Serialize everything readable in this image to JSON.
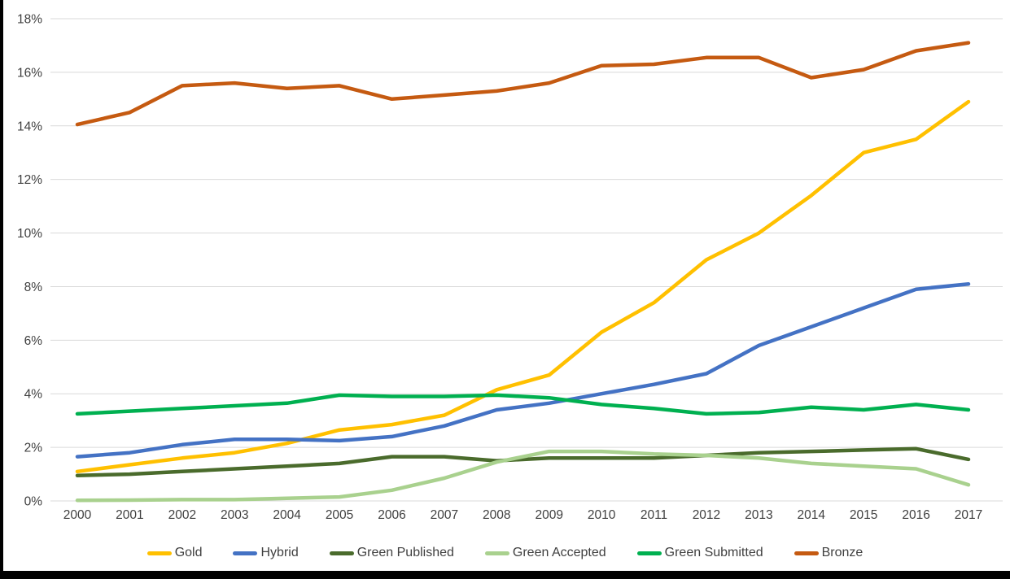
{
  "chart_data": {
    "type": "line",
    "title": "",
    "x": [
      2000,
      2001,
      2002,
      2003,
      2004,
      2005,
      2006,
      2007,
      2008,
      2009,
      2010,
      2011,
      2012,
      2013,
      2014,
      2015,
      2016,
      2017
    ],
    "series": [
      {
        "name": "Gold",
        "color": "#FFC000",
        "values": [
          1.1,
          1.35,
          1.6,
          1.8,
          2.15,
          2.65,
          2.85,
          3.2,
          4.15,
          4.7,
          6.3,
          7.4,
          9.0,
          10.0,
          11.4,
          13.0,
          13.5,
          14.9
        ]
      },
      {
        "name": "Hybrid",
        "color": "#4472C4",
        "values": [
          1.65,
          1.8,
          2.1,
          2.3,
          2.3,
          2.25,
          2.4,
          2.8,
          3.4,
          3.65,
          4.0,
          4.35,
          4.75,
          5.8,
          6.5,
          7.2,
          7.9,
          8.1
        ]
      },
      {
        "name": "Green Published",
        "color": "#4A6B2C",
        "values": [
          0.95,
          1.0,
          1.1,
          1.2,
          1.3,
          1.4,
          1.65,
          1.65,
          1.5,
          1.6,
          1.6,
          1.6,
          1.7,
          1.8,
          1.85,
          1.9,
          1.95,
          1.55
        ]
      },
      {
        "name": "Green Accepted",
        "color": "#A9D18E",
        "values": [
          0.02,
          0.03,
          0.05,
          0.05,
          0.1,
          0.15,
          0.4,
          0.85,
          1.45,
          1.85,
          1.85,
          1.75,
          1.7,
          1.6,
          1.4,
          1.3,
          1.2,
          0.6
        ]
      },
      {
        "name": "Green Submitted",
        "color": "#00B050",
        "values": [
          3.25,
          3.35,
          3.45,
          3.55,
          3.65,
          3.95,
          3.9,
          3.9,
          3.95,
          3.85,
          3.6,
          3.45,
          3.25,
          3.3,
          3.5,
          3.4,
          3.6,
          3.4
        ]
      },
      {
        "name": "Bronze",
        "color": "#C55A11",
        "values": [
          14.05,
          14.5,
          15.5,
          15.6,
          15.4,
          15.5,
          15.0,
          15.15,
          15.3,
          15.6,
          16.25,
          16.3,
          16.55,
          16.55,
          15.8,
          16.1,
          16.8,
          17.1
        ]
      }
    ],
    "xlabel": "",
    "ylabel": "",
    "ylim": [
      0,
      18
    ],
    "ytick_step": 2,
    "ytick_labels": [
      "0%",
      "2%",
      "4%",
      "6%",
      "8%",
      "10%",
      "12%",
      "14%",
      "16%",
      "18%"
    ],
    "grid": true,
    "legend_position": "bottom",
    "gridline_color": "#D9D9D9",
    "tick_label_color": "#404040",
    "line_width": 4.5
  }
}
